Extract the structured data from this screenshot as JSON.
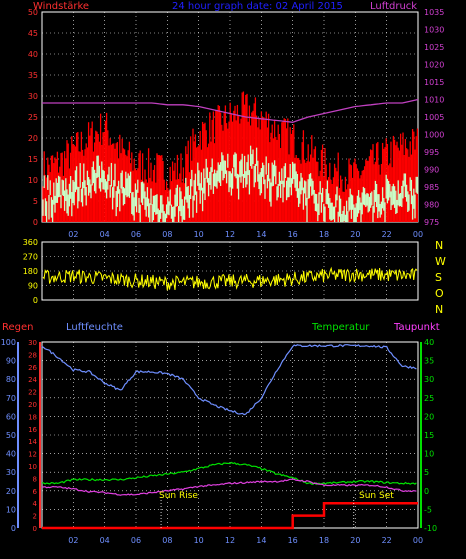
{
  "header": {
    "left": "Windstärke",
    "center": "24 hour graph date: 02 April 2015",
    "right": "Luftdruck"
  },
  "wind_panel_labels": {
    "letters": [
      "N",
      "W",
      "S",
      "O",
      "N"
    ]
  },
  "bottom_header": {
    "rain": "Regen",
    "humidity": "Luftfeuchte",
    "temperature": "Temperatur",
    "dewpoint": "Taupunkt"
  },
  "annotations": {
    "sunrise": "Sun Rise",
    "sunset": "Sun Set"
  },
  "colors": {
    "gust": "#ff0000",
    "wind": "#c8ffc8",
    "pressure": "#c040c0",
    "direction": "#ffff00",
    "humidity": "#6f8fff",
    "temperature": "#00e000",
    "dewpoint": "#e040e0",
    "rain": "#ff0000",
    "grid": "#ffffff",
    "title": "#2020ff",
    "frame": "#ffffff"
  },
  "chart_data": [
    {
      "type": "area",
      "name": "wind_pressure",
      "x_ticks": [
        "02",
        "04",
        "06",
        "08",
        "10",
        "12",
        "14",
        "16",
        "18",
        "20",
        "22",
        "00"
      ],
      "y_left_ticks": [
        0,
        5,
        10,
        15,
        20,
        25,
        30,
        35,
        40,
        45,
        50
      ],
      "y_right_ticks": [
        975,
        980,
        985,
        990,
        995,
        1000,
        1005,
        1010,
        1015,
        1020,
        1025,
        1030,
        1035
      ],
      "ylim_left": [
        0,
        50
      ],
      "ylim_right": [
        975,
        1035
      ],
      "hours": [
        0,
        1,
        2,
        3,
        4,
        5,
        6,
        7,
        8,
        9,
        10,
        11,
        12,
        13,
        14,
        15,
        16,
        17,
        18,
        19,
        20,
        21,
        22,
        23,
        24
      ],
      "series": [
        {
          "key": "gust",
          "values": [
            12,
            13,
            16,
            19,
            22,
            16,
            13,
            12,
            11,
            12,
            20,
            22,
            24,
            26,
            24,
            21,
            19,
            16,
            13,
            11,
            10,
            13,
            15,
            17,
            18
          ]
        },
        {
          "key": "wind",
          "values": [
            8,
            9,
            10,
            12,
            13,
            10,
            8,
            6,
            5,
            7,
            11,
            13,
            14,
            15,
            14,
            12,
            11,
            9,
            7,
            5,
            5,
            7,
            8,
            9,
            10
          ]
        },
        {
          "key": "pressure",
          "values": [
            1009,
            1009,
            1009,
            1009,
            1009,
            1009,
            1009,
            1009,
            1008.5,
            1008.5,
            1008,
            1007,
            1006,
            1005,
            1004.5,
            1004,
            1003.5,
            1005,
            1006,
            1007,
            1008,
            1008.5,
            1009,
            1009,
            1010
          ]
        }
      ]
    },
    {
      "type": "line",
      "name": "wind_direction",
      "y_ticks": [
        0,
        90,
        180,
        270,
        360
      ],
      "ylim": [
        0,
        360
      ],
      "hours": [
        0,
        2,
        4,
        6,
        8,
        10,
        12,
        14,
        16,
        18,
        20,
        22,
        24
      ],
      "values": [
        140,
        150,
        135,
        120,
        105,
        110,
        115,
        120,
        130,
        150,
        160,
        155,
        150
      ]
    },
    {
      "type": "line",
      "name": "climate",
      "y_ticks_humidity": [
        0,
        10,
        20,
        30,
        40,
        50,
        60,
        70,
        80,
        90,
        100
      ],
      "y_ticks_rain": [
        0,
        2,
        4,
        6,
        8,
        10,
        12,
        14,
        16,
        18,
        20,
        22,
        24,
        26,
        28,
        30
      ],
      "y_ticks_temp": [
        -10,
        -5,
        0,
        5,
        10,
        15,
        20,
        25,
        30,
        35,
        40
      ],
      "ylim_humidity": [
        0,
        100
      ],
      "ylim_temp": [
        -10,
        40
      ],
      "hours": [
        0,
        1,
        2,
        3,
        4,
        5,
        6,
        7,
        8,
        9,
        10,
        11,
        12,
        13,
        14,
        15,
        16,
        17,
        18,
        19,
        20,
        21,
        22,
        23,
        24
      ],
      "series": [
        {
          "key": "humidity",
          "values": [
            98,
            92,
            85,
            84,
            78,
            74,
            84,
            84,
            83,
            80,
            70,
            66,
            63,
            61,
            70,
            85,
            98,
            98,
            98,
            98,
            98,
            98,
            97,
            87,
            86
          ]
        },
        {
          "key": "temperature",
          "values": [
            2,
            2,
            3,
            3,
            3,
            3,
            3.5,
            4,
            4.5,
            5,
            6,
            7,
            7.5,
            7,
            6,
            4.5,
            3.5,
            2,
            2,
            2.2,
            2.5,
            2.5,
            2.2,
            2,
            2
          ]
        },
        {
          "key": "dewpoint",
          "values": [
            1,
            1,
            0.5,
            -0.2,
            -0.5,
            -1,
            -1,
            -0.5,
            0,
            0.5,
            1.2,
            1.5,
            2,
            2.2,
            2.5,
            2.5,
            3,
            2.5,
            1.5,
            1.5,
            1.5,
            1.5,
            1,
            0,
            0
          ]
        },
        {
          "key": "rain",
          "values": [
            0,
            0,
            0,
            0,
            0,
            0,
            0,
            0,
            0,
            0,
            0,
            0,
            0,
            0,
            0,
            0,
            2,
            2,
            4,
            4,
            4,
            4,
            4,
            4,
            4
          ]
        }
      ]
    }
  ]
}
